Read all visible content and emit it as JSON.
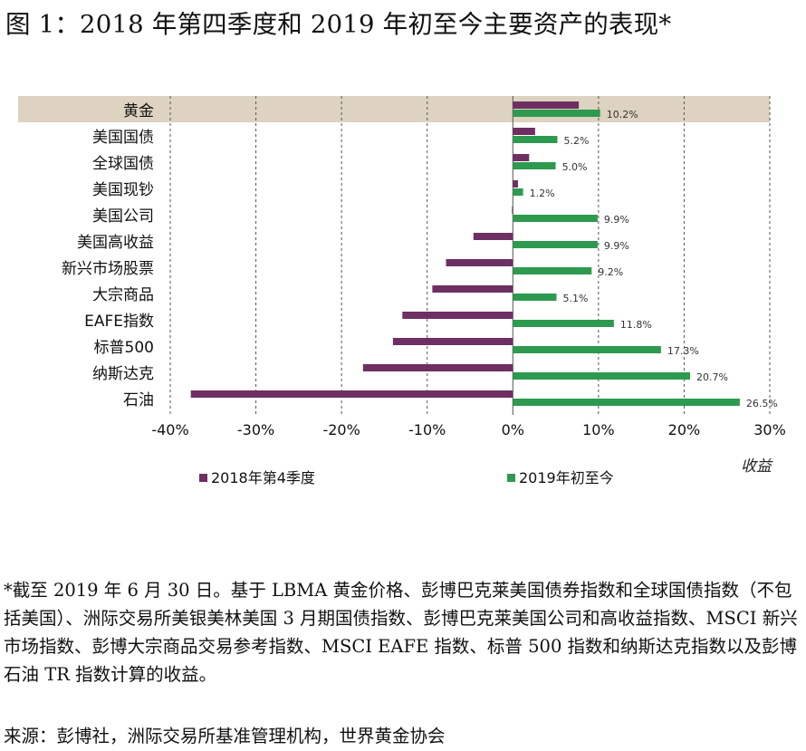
{
  "title": "图 1：2018 年第四季度和 2019 年初至今主要资产的表现*",
  "footnote": "*截至 2019 年 6 月 30 日。基于 LBMA 黄金价格、彭博巴克莱美国债券指数和全球国债指数（不包括美国）、洲际交易所美银美林美国 3 月期国债指数、彭博巴克莱美国公司和高收益指数、MSCI 新兴市场指数、彭博大宗商品交易参考指数、MSCI EAFE 指数、标普 500 指数和纳斯达克指数以及彭博石油 TR 指数计算的收益。",
  "source": "来源：彭博社，洲际交易所基准管理机构，世界黄金协会",
  "colors": {
    "q4_2018": "#6e2f63",
    "ytd_2019": "#2e9a4f",
    "highlight": "#ddd3c0",
    "grid": "#555555"
  },
  "chart_data": {
    "type": "bar",
    "orientation": "horizontal",
    "categories": [
      "黄金",
      "美国国债",
      "全球国债",
      "美国现钞",
      "美国公司",
      "美国高收益",
      "新兴市场股票",
      "大宗商品",
      "EAFE指数",
      "标普500",
      "纳斯达克",
      "石油"
    ],
    "highlighted_category": "黄金",
    "series": [
      {
        "name": "2018年第4季度",
        "values": [
          7.7,
          2.6,
          1.9,
          0.6,
          -0.1,
          -4.6,
          -7.8,
          -9.4,
          -12.9,
          -14.0,
          -17.5,
          -37.6
        ]
      },
      {
        "name": "2019年初至今",
        "values": [
          10.2,
          5.2,
          5.0,
          1.2,
          9.9,
          9.9,
          9.2,
          5.1,
          11.8,
          17.3,
          20.7,
          26.5
        ]
      }
    ],
    "data_labels": [
      "10.2%",
      "5.2%",
      "5.0%",
      "1.2%",
      "9.9%",
      "9.9%",
      "9.2%",
      "5.1%",
      "11.8%",
      "17.3%",
      "20.7%",
      "26.5%"
    ],
    "xlim": [
      -40,
      30
    ],
    "xticks": [
      -40,
      -30,
      -20,
      -10,
      0,
      10,
      20,
      30
    ],
    "xtick_labels": [
      "-40%",
      "-30%",
      "-20%",
      "-10%",
      "0%",
      "10%",
      "20%",
      "30%"
    ],
    "xlabel": "收益",
    "ylabel": "",
    "grid": "vertical dashed",
    "legend_position": "bottom"
  }
}
